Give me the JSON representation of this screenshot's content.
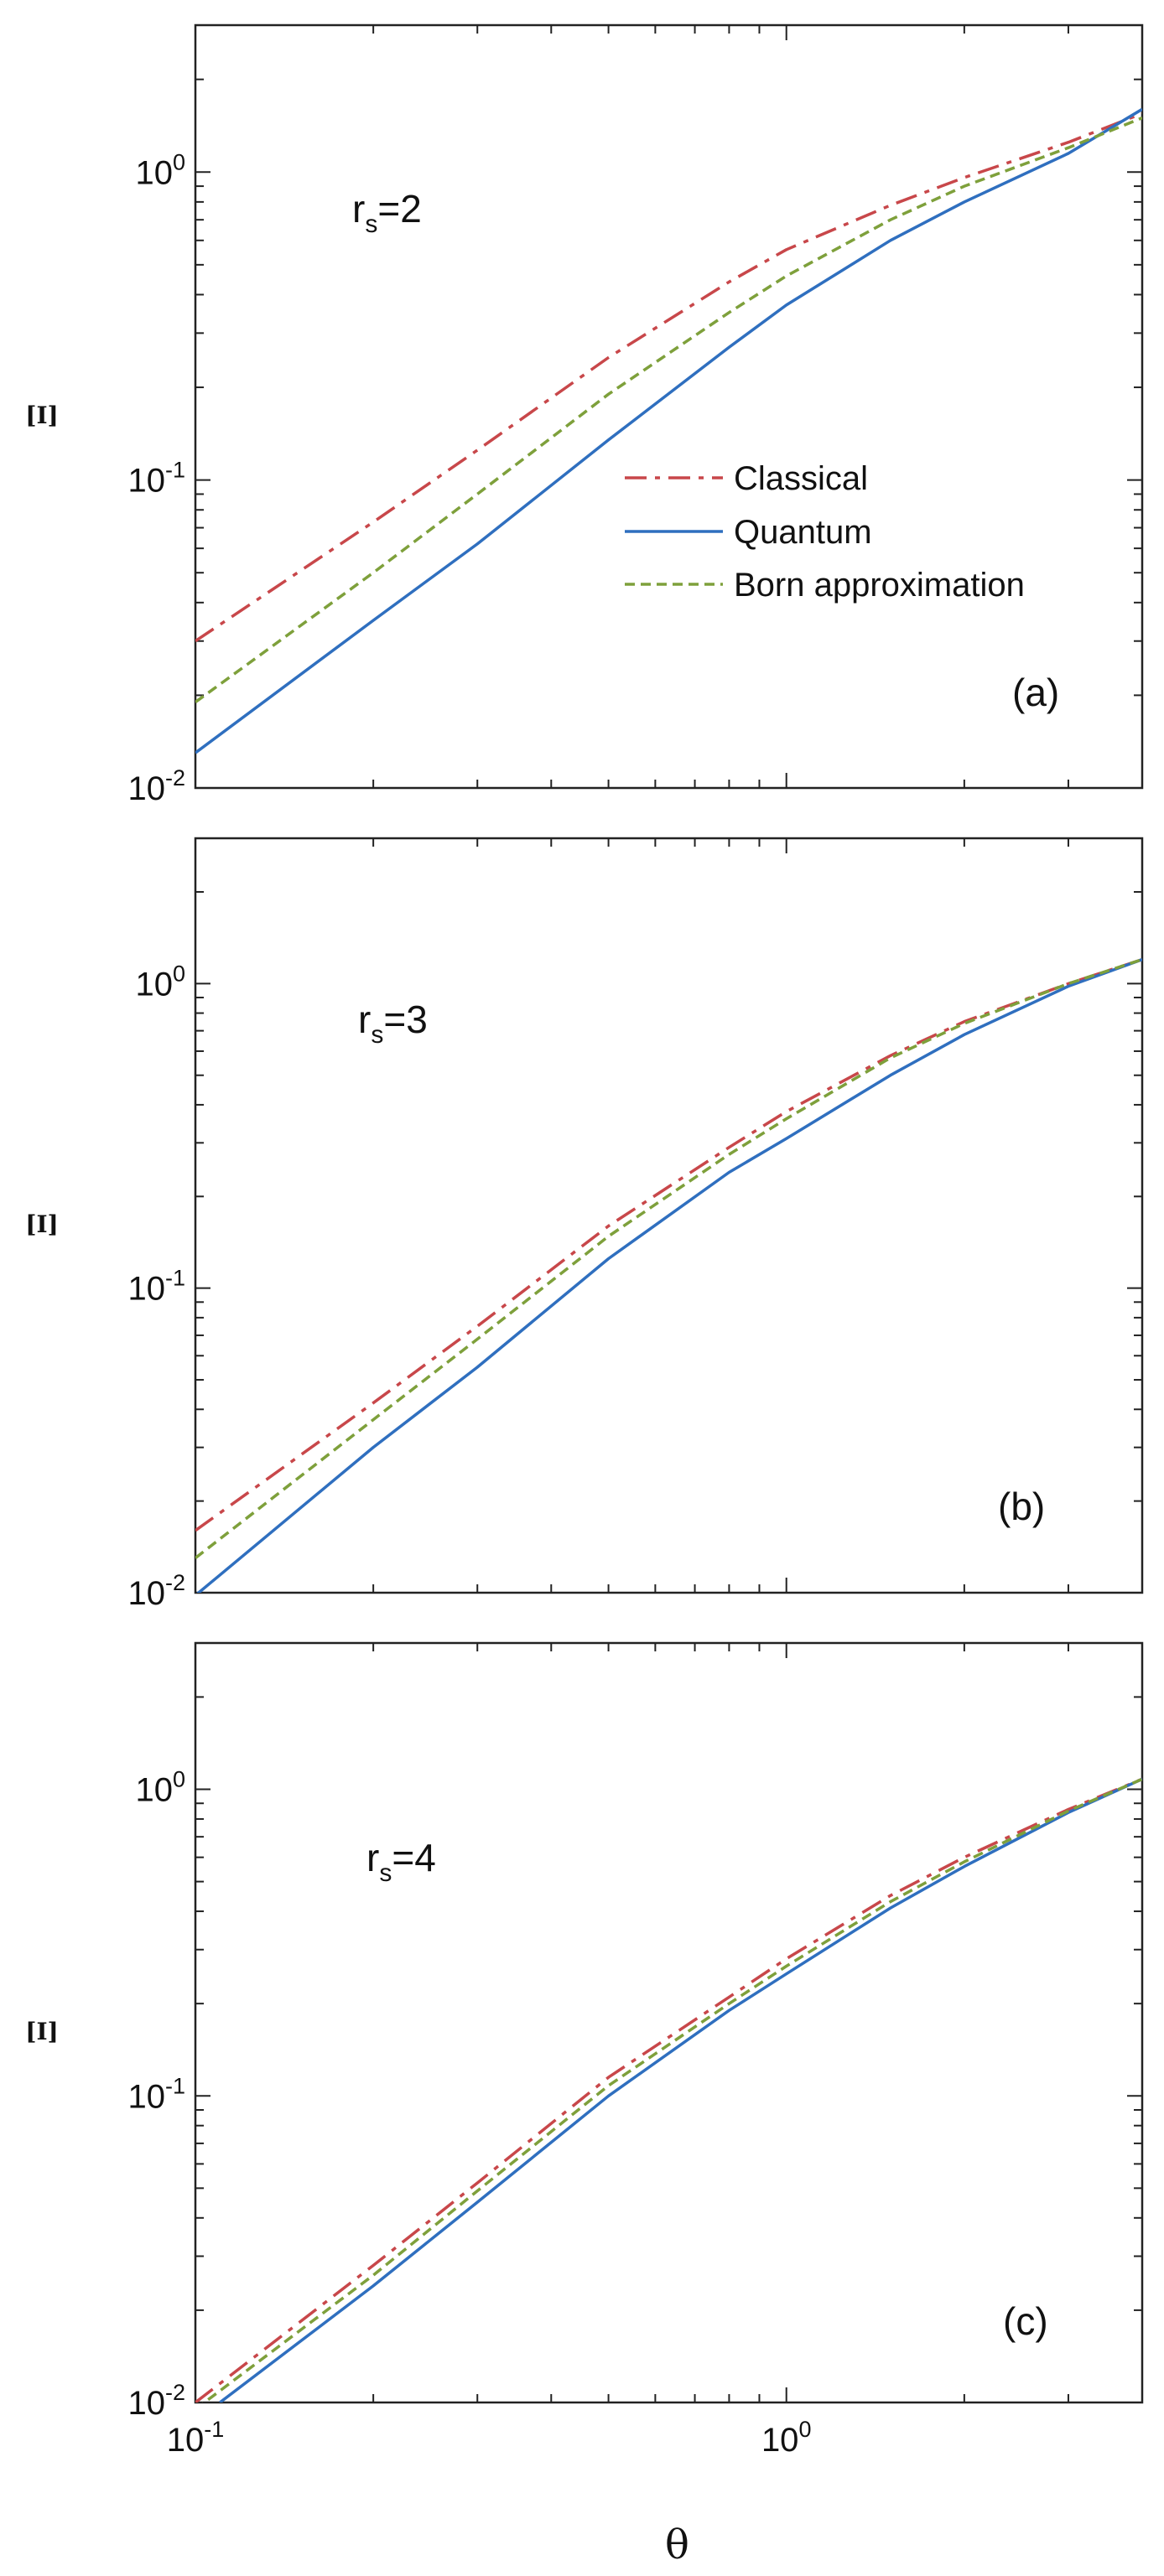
{
  "chart_data": [
    {
      "type": "line",
      "panel_tag": "(a)",
      "annotation": {
        "base": "r",
        "sub": "s",
        "value": "=2"
      },
      "ylabel": "[I]",
      "xlabel": "",
      "x_scale": "log",
      "y_scale": "log",
      "xlim": [
        0.1,
        4.0
      ],
      "ylim": [
        0.01,
        3.0
      ],
      "y_ticks": [
        {
          "base": "10",
          "exp": "-2"
        },
        {
          "base": "10",
          "exp": "-1"
        },
        {
          "base": "10",
          "exp": "0"
        }
      ],
      "legend": {
        "placement": "center-right",
        "entries": [
          "Classical",
          "Quantum",
          "Born approximation"
        ]
      },
      "series": [
        {
          "name": "Classical",
          "color": "#c8474a",
          "style": "dash-dot",
          "x": [
            0.1,
            0.2,
            0.3,
            0.5,
            0.8,
            1.0,
            1.5,
            2.0,
            3.0,
            4.0
          ],
          "y": [
            0.03,
            0.073,
            0.125,
            0.25,
            0.44,
            0.56,
            0.78,
            0.96,
            1.25,
            1.55
          ]
        },
        {
          "name": "Quantum",
          "color": "#2f6fbf",
          "style": "solid",
          "x": [
            0.1,
            0.2,
            0.3,
            0.5,
            0.8,
            1.0,
            1.5,
            2.0,
            3.0,
            4.0
          ],
          "y": [
            0.013,
            0.035,
            0.062,
            0.135,
            0.27,
            0.37,
            0.6,
            0.8,
            1.15,
            1.6
          ]
        },
        {
          "name": "Born approximation",
          "color": "#7ea03b",
          "style": "dashed",
          "x": [
            0.1,
            0.2,
            0.3,
            0.5,
            0.8,
            1.0,
            1.5,
            2.0,
            3.0,
            4.0
          ],
          "y": [
            0.019,
            0.05,
            0.09,
            0.19,
            0.35,
            0.46,
            0.7,
            0.9,
            1.2,
            1.5
          ]
        }
      ]
    },
    {
      "type": "line",
      "panel_tag": "(b)",
      "annotation": {
        "base": "r",
        "sub": "s",
        "value": "=3"
      },
      "ylabel": "[I]",
      "xlabel": "",
      "x_scale": "log",
      "y_scale": "log",
      "xlim": [
        0.1,
        4.0
      ],
      "ylim": [
        0.01,
        3.0
      ],
      "y_ticks": [
        {
          "base": "10",
          "exp": "-2"
        },
        {
          "base": "10",
          "exp": "-1"
        },
        {
          "base": "10",
          "exp": "0"
        }
      ],
      "series": [
        {
          "name": "Classical",
          "color": "#c8474a",
          "style": "dash-dot",
          "x": [
            0.1,
            0.2,
            0.3,
            0.5,
            0.8,
            1.0,
            1.5,
            2.0,
            3.0,
            4.0
          ],
          "y": [
            0.016,
            0.042,
            0.075,
            0.16,
            0.29,
            0.38,
            0.58,
            0.75,
            1.0,
            1.2
          ]
        },
        {
          "name": "Quantum",
          "color": "#2f6fbf",
          "style": "solid",
          "x": [
            0.1,
            0.2,
            0.3,
            0.5,
            0.8,
            1.0,
            1.5,
            2.0,
            3.0,
            4.0
          ],
          "y": [
            0.0098,
            0.03,
            0.055,
            0.125,
            0.24,
            0.31,
            0.5,
            0.68,
            0.98,
            1.2
          ]
        },
        {
          "name": "Born approximation",
          "color": "#7ea03b",
          "style": "dashed",
          "x": [
            0.1,
            0.2,
            0.3,
            0.5,
            0.8,
            1.0,
            1.5,
            2.0,
            3.0,
            4.0
          ],
          "y": [
            0.013,
            0.037,
            0.068,
            0.148,
            0.275,
            0.36,
            0.57,
            0.74,
            1.0,
            1.2
          ]
        }
      ]
    },
    {
      "type": "line",
      "panel_tag": "(c)",
      "annotation": {
        "base": "r",
        "sub": "s",
        "value": "=4"
      },
      "ylabel": "[I]",
      "xlabel": "θ",
      "x_scale": "log",
      "y_scale": "log",
      "xlim": [
        0.1,
        4.0
      ],
      "ylim": [
        0.01,
        3.0
      ],
      "x_ticks": [
        {
          "base": "10",
          "exp": "-1"
        },
        {
          "base": "10",
          "exp": "0"
        }
      ],
      "y_ticks": [
        {
          "base": "10",
          "exp": "-2"
        },
        {
          "base": "10",
          "exp": "-1"
        },
        {
          "base": "10",
          "exp": "0"
        }
      ],
      "series": [
        {
          "name": "Classical",
          "color": "#c8474a",
          "style": "dash-dot",
          "x": [
            0.1,
            0.2,
            0.3,
            0.5,
            0.8,
            1.0,
            1.5,
            2.0,
            3.0,
            4.0
          ],
          "y": [
            0.01,
            0.028,
            0.052,
            0.115,
            0.21,
            0.28,
            0.45,
            0.6,
            0.86,
            1.08
          ]
        },
        {
          "name": "Quantum",
          "color": "#2f6fbf",
          "style": "solid",
          "x": [
            0.11,
            0.2,
            0.3,
            0.5,
            0.8,
            1.0,
            1.5,
            2.0,
            3.0,
            4.0
          ],
          "y": [
            0.01,
            0.024,
            0.045,
            0.1,
            0.19,
            0.25,
            0.41,
            0.56,
            0.84,
            1.08
          ]
        },
        {
          "name": "Born approximation",
          "color": "#7ea03b",
          "style": "dashed",
          "x": [
            0.1,
            0.2,
            0.3,
            0.5,
            0.8,
            1.0,
            1.5,
            2.0,
            3.0,
            4.0
          ],
          "y": [
            0.0095,
            0.026,
            0.049,
            0.108,
            0.2,
            0.265,
            0.43,
            0.58,
            0.85,
            1.08
          ]
        }
      ]
    }
  ]
}
